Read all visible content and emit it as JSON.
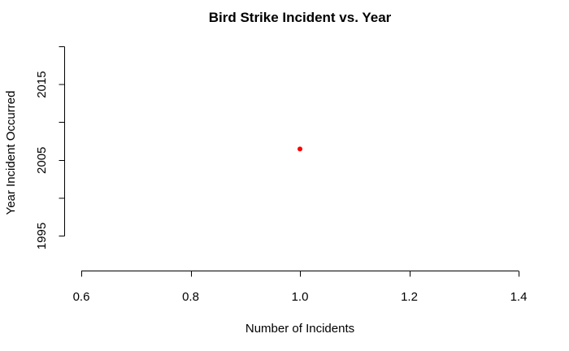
{
  "chart_data": {
    "type": "scatter",
    "title": "Bird Strike Incident vs. Year",
    "xlabel": "Number of Incidents",
    "ylabel": "Year Incident Occurred",
    "xlim": [
      0.6,
      1.4
    ],
    "ylim": [
      1990,
      2020
    ],
    "x_ticks": [
      0.6,
      0.8,
      1.0,
      1.2,
      1.4
    ],
    "x_tick_labels": [
      "0.6",
      "0.8",
      "1.0",
      "1.2",
      "1.4"
    ],
    "y_ticks": [
      1995,
      2000,
      2005,
      2010,
      2015,
      2020
    ],
    "y_tick_labels": [
      "1995",
      "",
      "2005",
      "",
      "2015",
      ""
    ],
    "grid": false,
    "series": [
      {
        "color": "#ff0000",
        "points": [
          {
            "x": 1.0,
            "y": 2006.5
          }
        ]
      }
    ]
  }
}
